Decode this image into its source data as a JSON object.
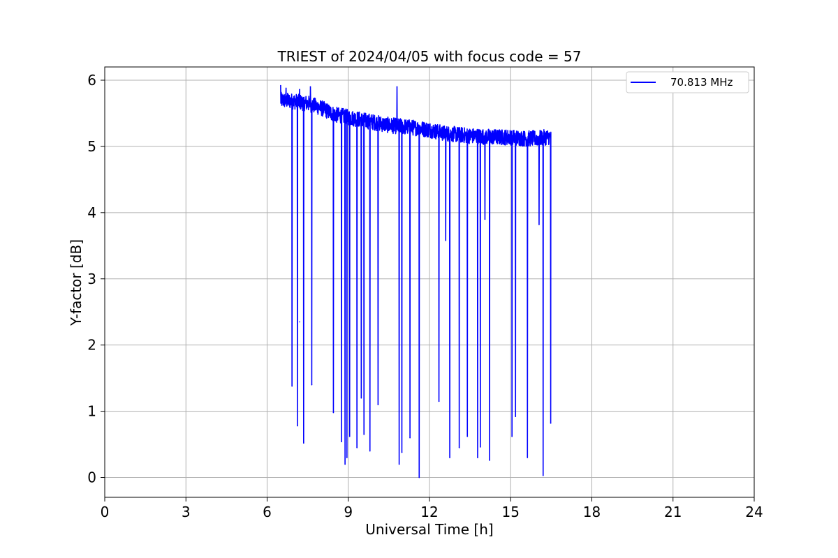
{
  "chart_data": {
    "type": "line",
    "title": "TRIEST of 2024/04/05 with focus code = 57",
    "xlabel": "Universal Time [h]",
    "ylabel": "Y-factor [dB]",
    "xlim": [
      0,
      24
    ],
    "ylim": [
      -0.3,
      6.2
    ],
    "xticks": [
      0,
      3,
      6,
      9,
      12,
      15,
      18,
      21,
      24
    ],
    "yticks": [
      0,
      1,
      2,
      3,
      4,
      5,
      6
    ],
    "grid": true,
    "legend_position": "top-right",
    "series": [
      {
        "name": "70.813 MHz",
        "color": "#0000ff",
        "x_start": 6.5,
        "x_end": 16.5,
        "baseline": [
          [
            6.5,
            5.7
          ],
          [
            7.0,
            5.68
          ],
          [
            7.5,
            5.65
          ],
          [
            8.0,
            5.58
          ],
          [
            8.5,
            5.48
          ],
          [
            9.0,
            5.44
          ],
          [
            9.5,
            5.4
          ],
          [
            10.0,
            5.36
          ],
          [
            10.5,
            5.32
          ],
          [
            11.0,
            5.3
          ],
          [
            11.5,
            5.28
          ],
          [
            12.0,
            5.25
          ],
          [
            12.5,
            5.2
          ],
          [
            13.0,
            5.18
          ],
          [
            13.5,
            5.16
          ],
          [
            14.0,
            5.15
          ],
          [
            14.5,
            5.14
          ],
          [
            15.0,
            5.14
          ],
          [
            15.5,
            5.12
          ],
          [
            16.0,
            5.12
          ],
          [
            16.5,
            5.15
          ]
        ],
        "noise_amplitude": 0.12,
        "peaks": [
          [
            6.5,
            5.92
          ],
          [
            6.7,
            5.88
          ],
          [
            7.2,
            5.86
          ],
          [
            7.6,
            5.9
          ],
          [
            10.8,
            5.9
          ]
        ],
        "dips": [
          [
            6.92,
            1.38
          ],
          [
            7.12,
            0.78
          ],
          [
            7.2,
            2.35
          ],
          [
            7.35,
            0.52
          ],
          [
            7.65,
            1.4
          ],
          [
            8.45,
            0.98
          ],
          [
            8.75,
            0.54
          ],
          [
            8.88,
            0.2
          ],
          [
            8.95,
            0.3
          ],
          [
            9.05,
            0.62
          ],
          [
            9.32,
            0.45
          ],
          [
            9.48,
            1.2
          ],
          [
            9.58,
            0.65
          ],
          [
            9.8,
            0.4
          ],
          [
            10.1,
            1.1
          ],
          [
            10.88,
            0.2
          ],
          [
            10.98,
            0.38
          ],
          [
            11.28,
            0.6
          ],
          [
            11.62,
            0.0
          ],
          [
            12.35,
            1.15
          ],
          [
            12.6,
            3.58
          ],
          [
            12.75,
            0.3
          ],
          [
            13.1,
            0.45
          ],
          [
            13.4,
            0.62
          ],
          [
            13.78,
            0.3
          ],
          [
            13.88,
            0.46
          ],
          [
            14.05,
            3.9
          ],
          [
            14.22,
            0.26
          ],
          [
            15.05,
            0.62
          ],
          [
            15.18,
            0.92
          ],
          [
            15.62,
            0.3
          ],
          [
            16.05,
            3.82
          ],
          [
            16.2,
            0.03
          ],
          [
            16.48,
            0.82
          ]
        ]
      }
    ]
  }
}
